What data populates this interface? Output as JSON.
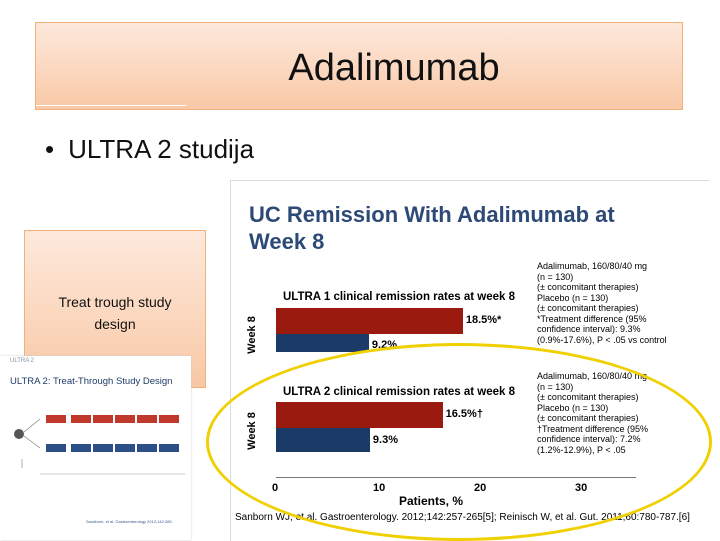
{
  "title": "Adalimumab",
  "bullet": "ULTRA 2 studija",
  "side_box": {
    "line1": "Treat trough study",
    "line2": "design"
  },
  "thumb": {
    "tag": "ULTRA 2",
    "title": "ULTRA 2: Treat-Through Study Design",
    "footer": "Sandborn, et al. Gastroenterology 2012;142:265."
  },
  "slide": {
    "title_line1": "UC Remission With Adalimumab at",
    "title_line2": "Week 8",
    "week_label": "Week 8",
    "panel1_title": "ULTRA 1 clinical remission rates at week 8",
    "panel2_title": "ULTRA 2 clinical remission rates at week 8",
    "p1_red_label": "18.5%*",
    "p1_blue_label": "9.2%",
    "p2_red_label": "16.5%†",
    "p2_blue_label": "9.3%",
    "legend1": [
      "Adalimumab, 160/80/40 mg",
      "(n = 130)",
      "(± concomitant therapies)",
      "Placebo (n = 130)",
      "(± concomitant therapies)",
      "*Treatment difference (95%",
      "confidence interval): 9.3%",
      "(0.9%-17.6%), P < .05 vs control"
    ],
    "legend2": [
      "Adalimumab, 160/80/40 mg",
      "(n = 130)",
      "(± concomitant therapies)",
      "Placebo (n = 130)",
      "(± concomitant therapies)",
      "†Treatment difference (95%",
      "confidence interval): 7.2%",
      "(1.2%-12.9%), P < .05"
    ],
    "x_ticks": [
      "0",
      "10",
      "20",
      "30"
    ],
    "x_label": "Patients, %",
    "citation": "Sanborn WJ, et al. Gastroenterology. 2012;142:257-265[5]; Reinisch W, et al. Gut. 2011;60:780-787.[6]"
  },
  "chart_data": {
    "type": "bar",
    "title": "UC Remission With Adalimumab at Week 8",
    "xlabel": "Patients, %",
    "xlim": [
      0,
      30
    ],
    "panels": [
      {
        "title": "ULTRA 1 clinical remission rates at week 8",
        "categories": [
          "Adalimumab",
          "Placebo"
        ],
        "values": [
          18.5,
          9.2
        ]
      },
      {
        "title": "ULTRA 2 clinical remission rates at week 8",
        "categories": [
          "Adalimumab",
          "Placebo"
        ],
        "values": [
          16.5,
          9.3
        ]
      }
    ],
    "colors": {
      "adalimumab": "#9b1a10",
      "placebo": "#1c3a68"
    }
  }
}
